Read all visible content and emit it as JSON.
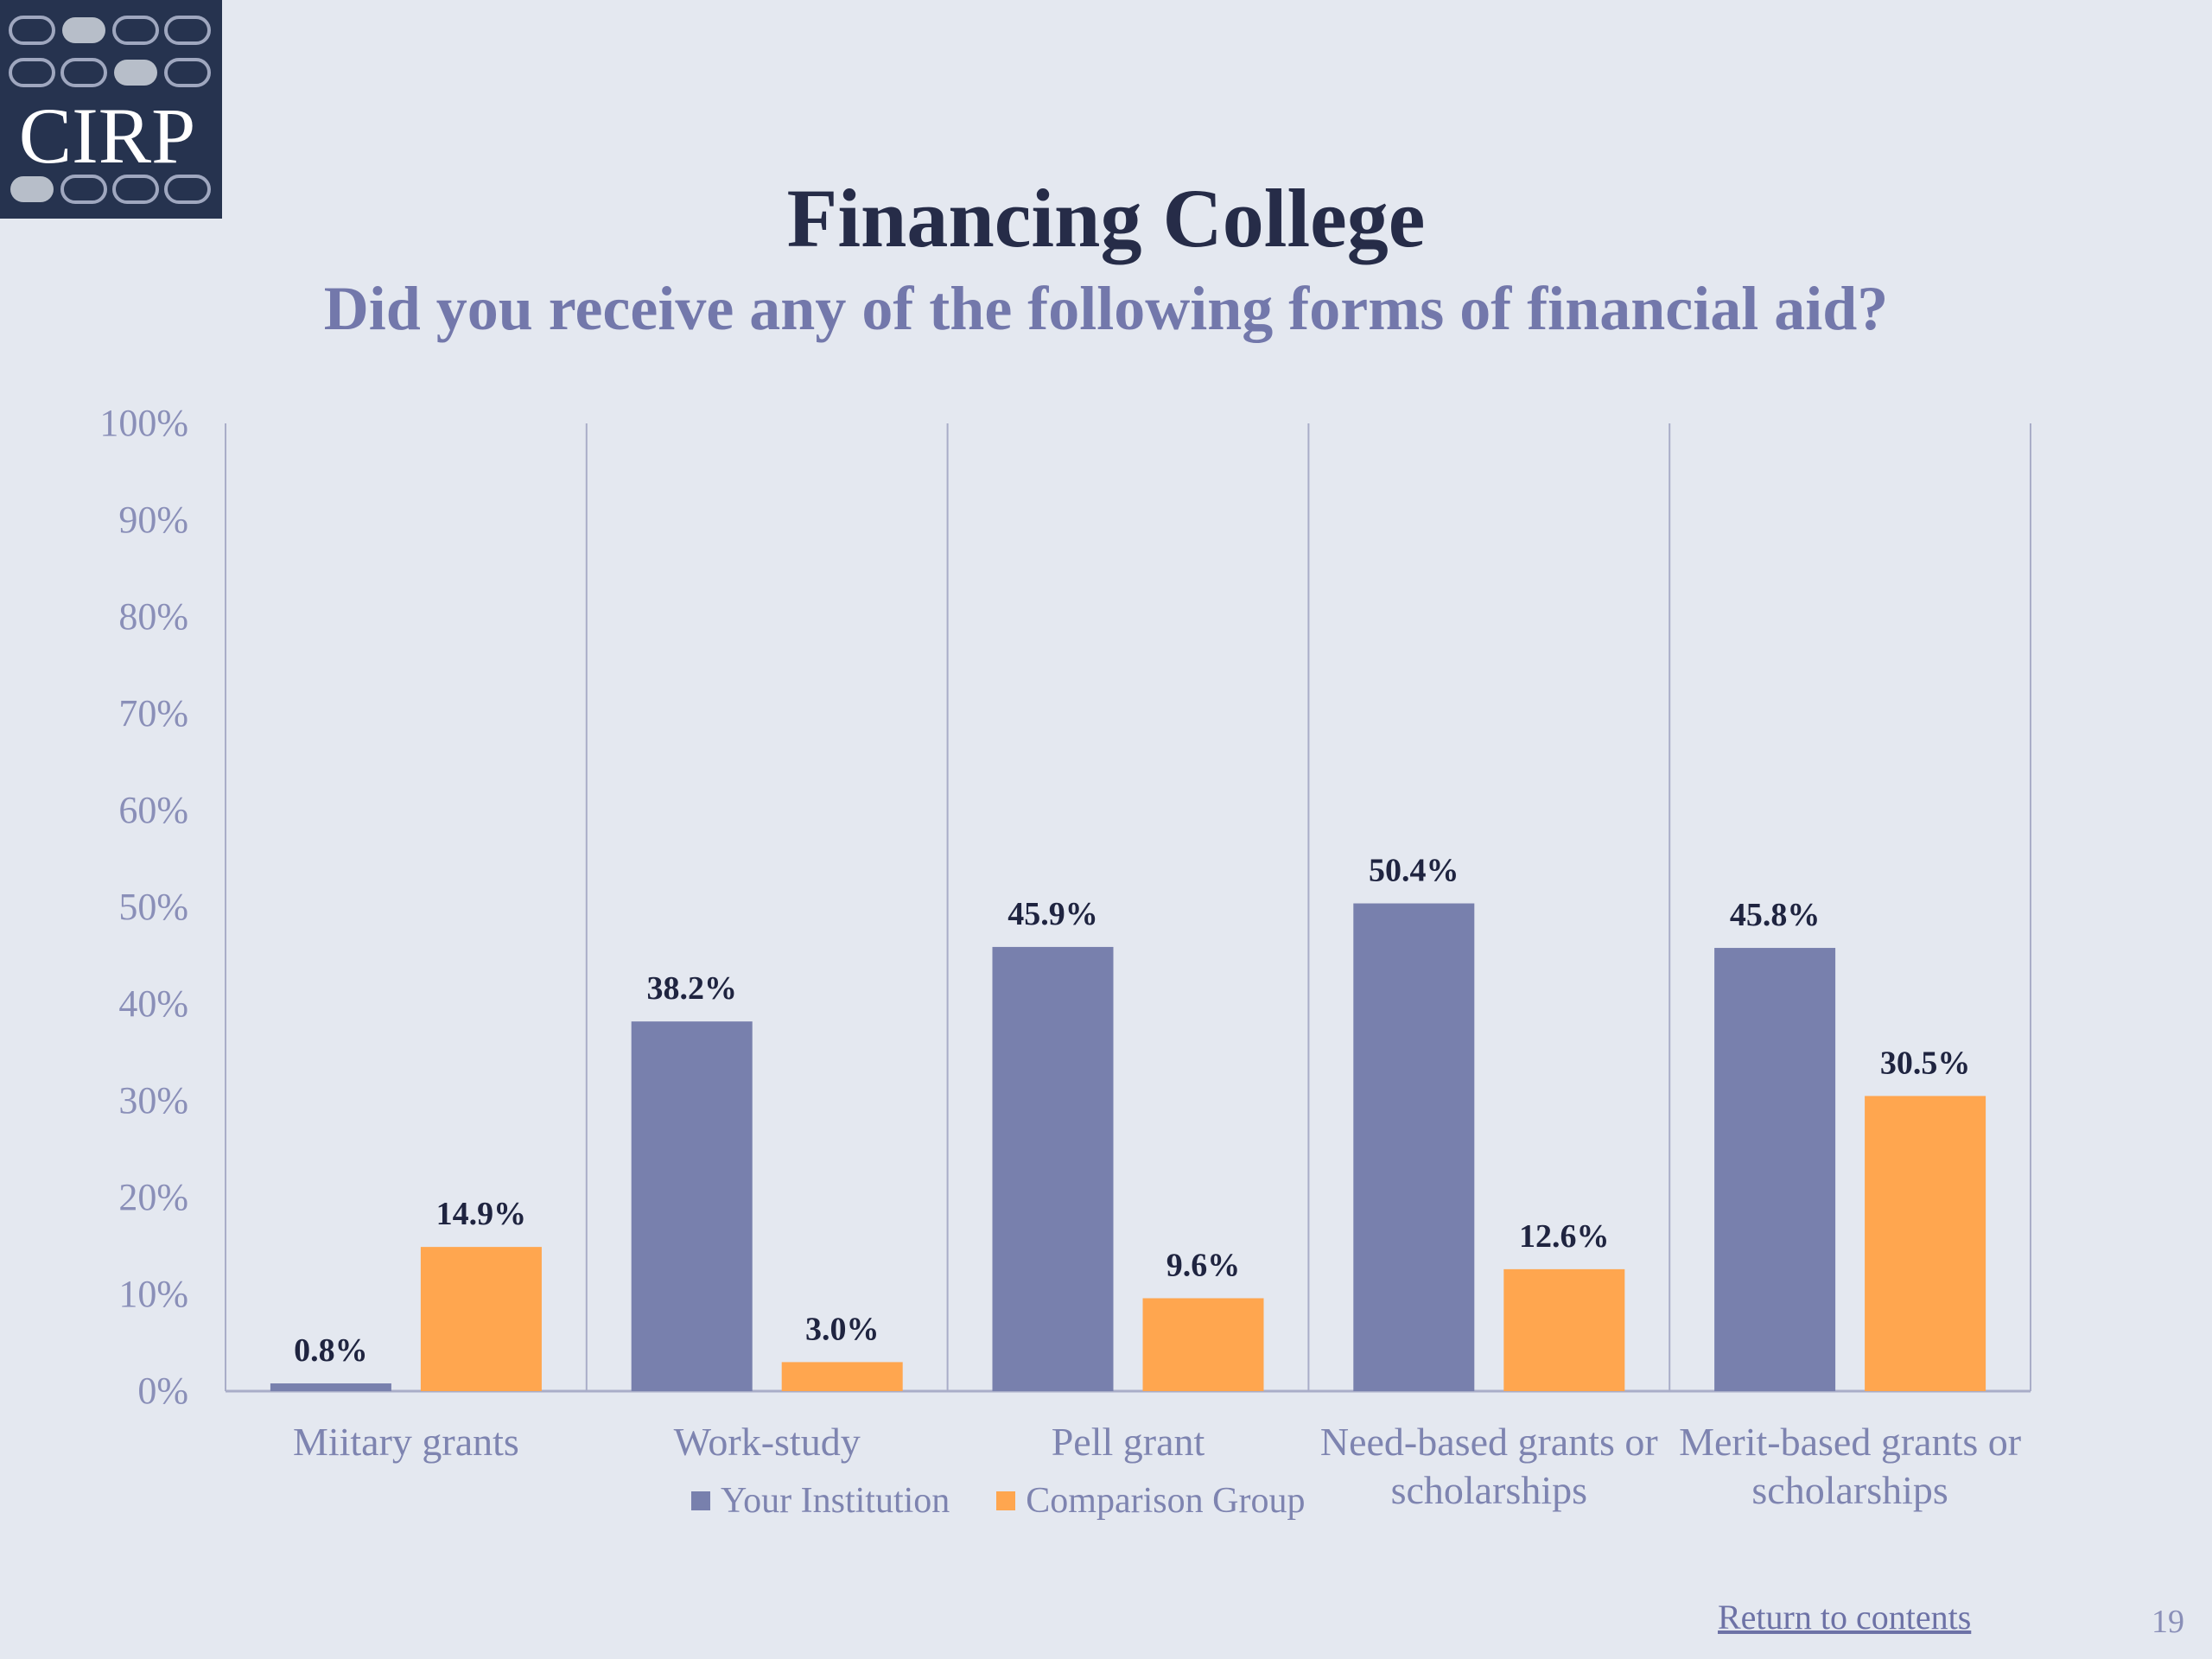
{
  "logo": {
    "text": "CIRP"
  },
  "colors": {
    "background": "#e4e8f0",
    "your_institution": "#7880ad",
    "comparison_group": "#ffa64f",
    "title": "#262c48",
    "subtitle": "#7378ab",
    "axis_text": "#8a8fb8",
    "gridline": "#a9adc8"
  },
  "chart_data": {
    "type": "bar",
    "title": "Financing College",
    "subtitle": "Did you receive any of  the following forms of  financial aid?",
    "categories": [
      "Miitary grants",
      "Work-study",
      "Pell grant",
      "Need-based grants or scholarships",
      "Merit-based grants or scholarships"
    ],
    "category_lines": [
      [
        "Miitary grants"
      ],
      [
        "Work-study"
      ],
      [
        "Pell grant"
      ],
      [
        "Need-based grants or",
        "scholarships"
      ],
      [
        "Merit-based grants or",
        "scholarships"
      ]
    ],
    "series": [
      {
        "name": "Your Institution",
        "values": [
          0.8,
          38.2,
          45.9,
          50.4,
          45.8
        ],
        "labels": [
          "0.8%",
          "38.2%",
          "45.9%",
          "50.4%",
          "45.8%"
        ]
      },
      {
        "name": "Comparison Group",
        "values": [
          14.9,
          3.0,
          9.6,
          12.6,
          30.5
        ],
        "labels": [
          "14.9%",
          "3.0%",
          "9.6%",
          "12.6%",
          "30.5%"
        ]
      }
    ],
    "ylim": [
      0,
      100
    ],
    "yticks": [
      "0%",
      "10%",
      "20%",
      "30%",
      "40%",
      "50%",
      "60%",
      "70%",
      "80%",
      "90%",
      "100%"
    ],
    "grid": "vertical category separators",
    "legend_position": "bottom"
  },
  "footer": {
    "return_link": "Return to contents",
    "page_number": "19"
  }
}
